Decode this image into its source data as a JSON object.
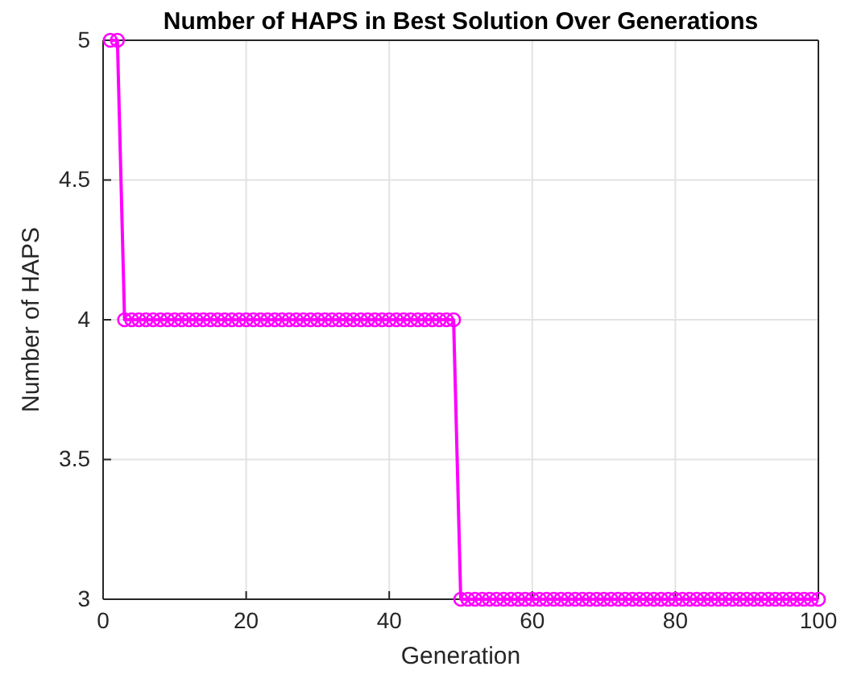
{
  "chart_data": {
    "type": "line",
    "title": "Number of HAPS in Best Solution Over Generations",
    "xlabel": "Generation",
    "ylabel": "Number of HAPS",
    "x": [
      1,
      2,
      3,
      4,
      5,
      6,
      7,
      8,
      9,
      10,
      11,
      12,
      13,
      14,
      15,
      16,
      17,
      18,
      19,
      20,
      21,
      22,
      23,
      24,
      25,
      26,
      27,
      28,
      29,
      30,
      31,
      32,
      33,
      34,
      35,
      36,
      37,
      38,
      39,
      40,
      41,
      42,
      43,
      44,
      45,
      46,
      47,
      48,
      49,
      50,
      51,
      52,
      53,
      54,
      55,
      56,
      57,
      58,
      59,
      60,
      61,
      62,
      63,
      64,
      65,
      66,
      67,
      68,
      69,
      70,
      71,
      72,
      73,
      74,
      75,
      76,
      77,
      78,
      79,
      80,
      81,
      82,
      83,
      84,
      85,
      86,
      87,
      88,
      89,
      90,
      91,
      92,
      93,
      94,
      95,
      96,
      97,
      98,
      99,
      100
    ],
    "series": [
      {
        "color": "#ff00ff",
        "values": [
          5,
          5,
          4,
          4,
          4,
          4,
          4,
          4,
          4,
          4,
          4,
          4,
          4,
          4,
          4,
          4,
          4,
          4,
          4,
          4,
          4,
          4,
          4,
          4,
          4,
          4,
          4,
          4,
          4,
          4,
          4,
          4,
          4,
          4,
          4,
          4,
          4,
          4,
          4,
          4,
          4,
          4,
          4,
          4,
          4,
          4,
          4,
          4,
          4,
          3,
          3,
          3,
          3,
          3,
          3,
          3,
          3,
          3,
          3,
          3,
          3,
          3,
          3,
          3,
          3,
          3,
          3,
          3,
          3,
          3,
          3,
          3,
          3,
          3,
          3,
          3,
          3,
          3,
          3,
          3,
          3,
          3,
          3,
          3,
          3,
          3,
          3,
          3,
          3,
          3,
          3,
          3,
          3,
          3,
          3,
          3,
          3,
          3,
          3,
          3
        ]
      }
    ],
    "xlim": [
      0,
      100
    ],
    "xticks": [
      0,
      20,
      40,
      60,
      80,
      100
    ],
    "ylim": [
      3,
      5
    ],
    "yticks": [
      3,
      3.5,
      4,
      4.5,
      5
    ],
    "grid": true,
    "marker": "circle",
    "line_style": "solid"
  }
}
